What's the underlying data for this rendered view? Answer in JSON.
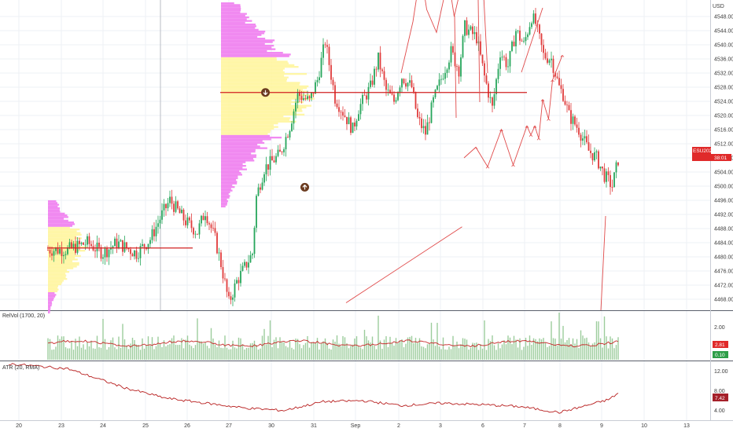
{
  "chart_data": [
    {
      "type": "candlestick",
      "symbol": "ESU2021",
      "currency": "USD",
      "last_price": "4510.25",
      "countdown": "38:01",
      "x_ticks": [
        "20",
        "23",
        "24",
        "25",
        "26",
        "27",
        "30",
        "31",
        "Sep",
        "2",
        "3",
        "6",
        "7",
        "8",
        "9",
        "10",
        "13"
      ],
      "y_ticks": [
        4468,
        4472,
        4476,
        4480,
        4484,
        4488,
        4492,
        4496,
        4500,
        4504,
        4508,
        4512,
        4516,
        4520,
        4524,
        4528,
        4532,
        4536,
        4540,
        4544,
        4548
      ],
      "ylim": [
        4465,
        4552
      ],
      "levels": [
        {
          "role": "profile-poc",
          "price": 4482.5,
          "from_bar": 0,
          "to_bar": 62
        },
        {
          "role": "profile-poc",
          "price": 4526.5,
          "from_bar": 88,
          "to_bar": 232
        }
      ],
      "volume_profiles": [
        {
          "anchor_bar": 0,
          "top": 4496,
          "bottom": 4464,
          "value_area": [
            4470,
            4488
          ]
        },
        {
          "anchor_bar": 88,
          "top": 4552,
          "bottom": 4494,
          "value_area": [
            4514.5,
            4536
          ]
        }
      ],
      "markers": [
        {
          "type": "arrow-down-circle",
          "bar": 111,
          "price": 4526.5
        },
        {
          "type": "arrow-up-circle",
          "bar": 131,
          "price": 4499.7
        }
      ],
      "projection_path": [
        [
          212,
          4508
        ],
        [
          218,
          4511
        ],
        [
          224,
          4505.5
        ],
        [
          231,
          4516
        ],
        [
          237,
          4506
        ],
        [
          244,
          4517
        ],
        [
          246,
          4514.5
        ],
        [
          248,
          4517
        ],
        [
          250,
          4513.5
        ],
        [
          252,
          4524.5
        ],
        [
          255,
          4519
        ],
        [
          257,
          4530
        ],
        [
          262,
          4537
        ]
      ],
      "projection_path_upper": [
        [
          180,
          4532
        ],
        [
          186,
          4546.5
        ],
        [
          190,
          4561
        ],
        [
          193,
          4550
        ],
        [
          198,
          4543.5
        ],
        [
          204,
          4559
        ],
        [
          207,
          4548
        ],
        [
          212,
          4560
        ],
        [
          222,
          4554
        ],
        [
          224,
          4532
        ]
      ],
      "trend_line": [
        [
          152,
          4467
        ],
        [
          211,
          4488.5
        ]
      ]
    },
    {
      "type": "bar",
      "title": "RelVol (1700, 20)",
      "y_ticks": [
        1.0,
        2.0
      ],
      "ylim": [
        0,
        2.8
      ],
      "last_value": "2.81",
      "last_value_2": "0.10"
    },
    {
      "type": "line",
      "title": "ATR (20, RMA)",
      "y_ticks": [
        4.0,
        8.0,
        12.0
      ],
      "ylim": [
        2.5,
        14
      ],
      "last_value": "7.42"
    }
  ]
}
